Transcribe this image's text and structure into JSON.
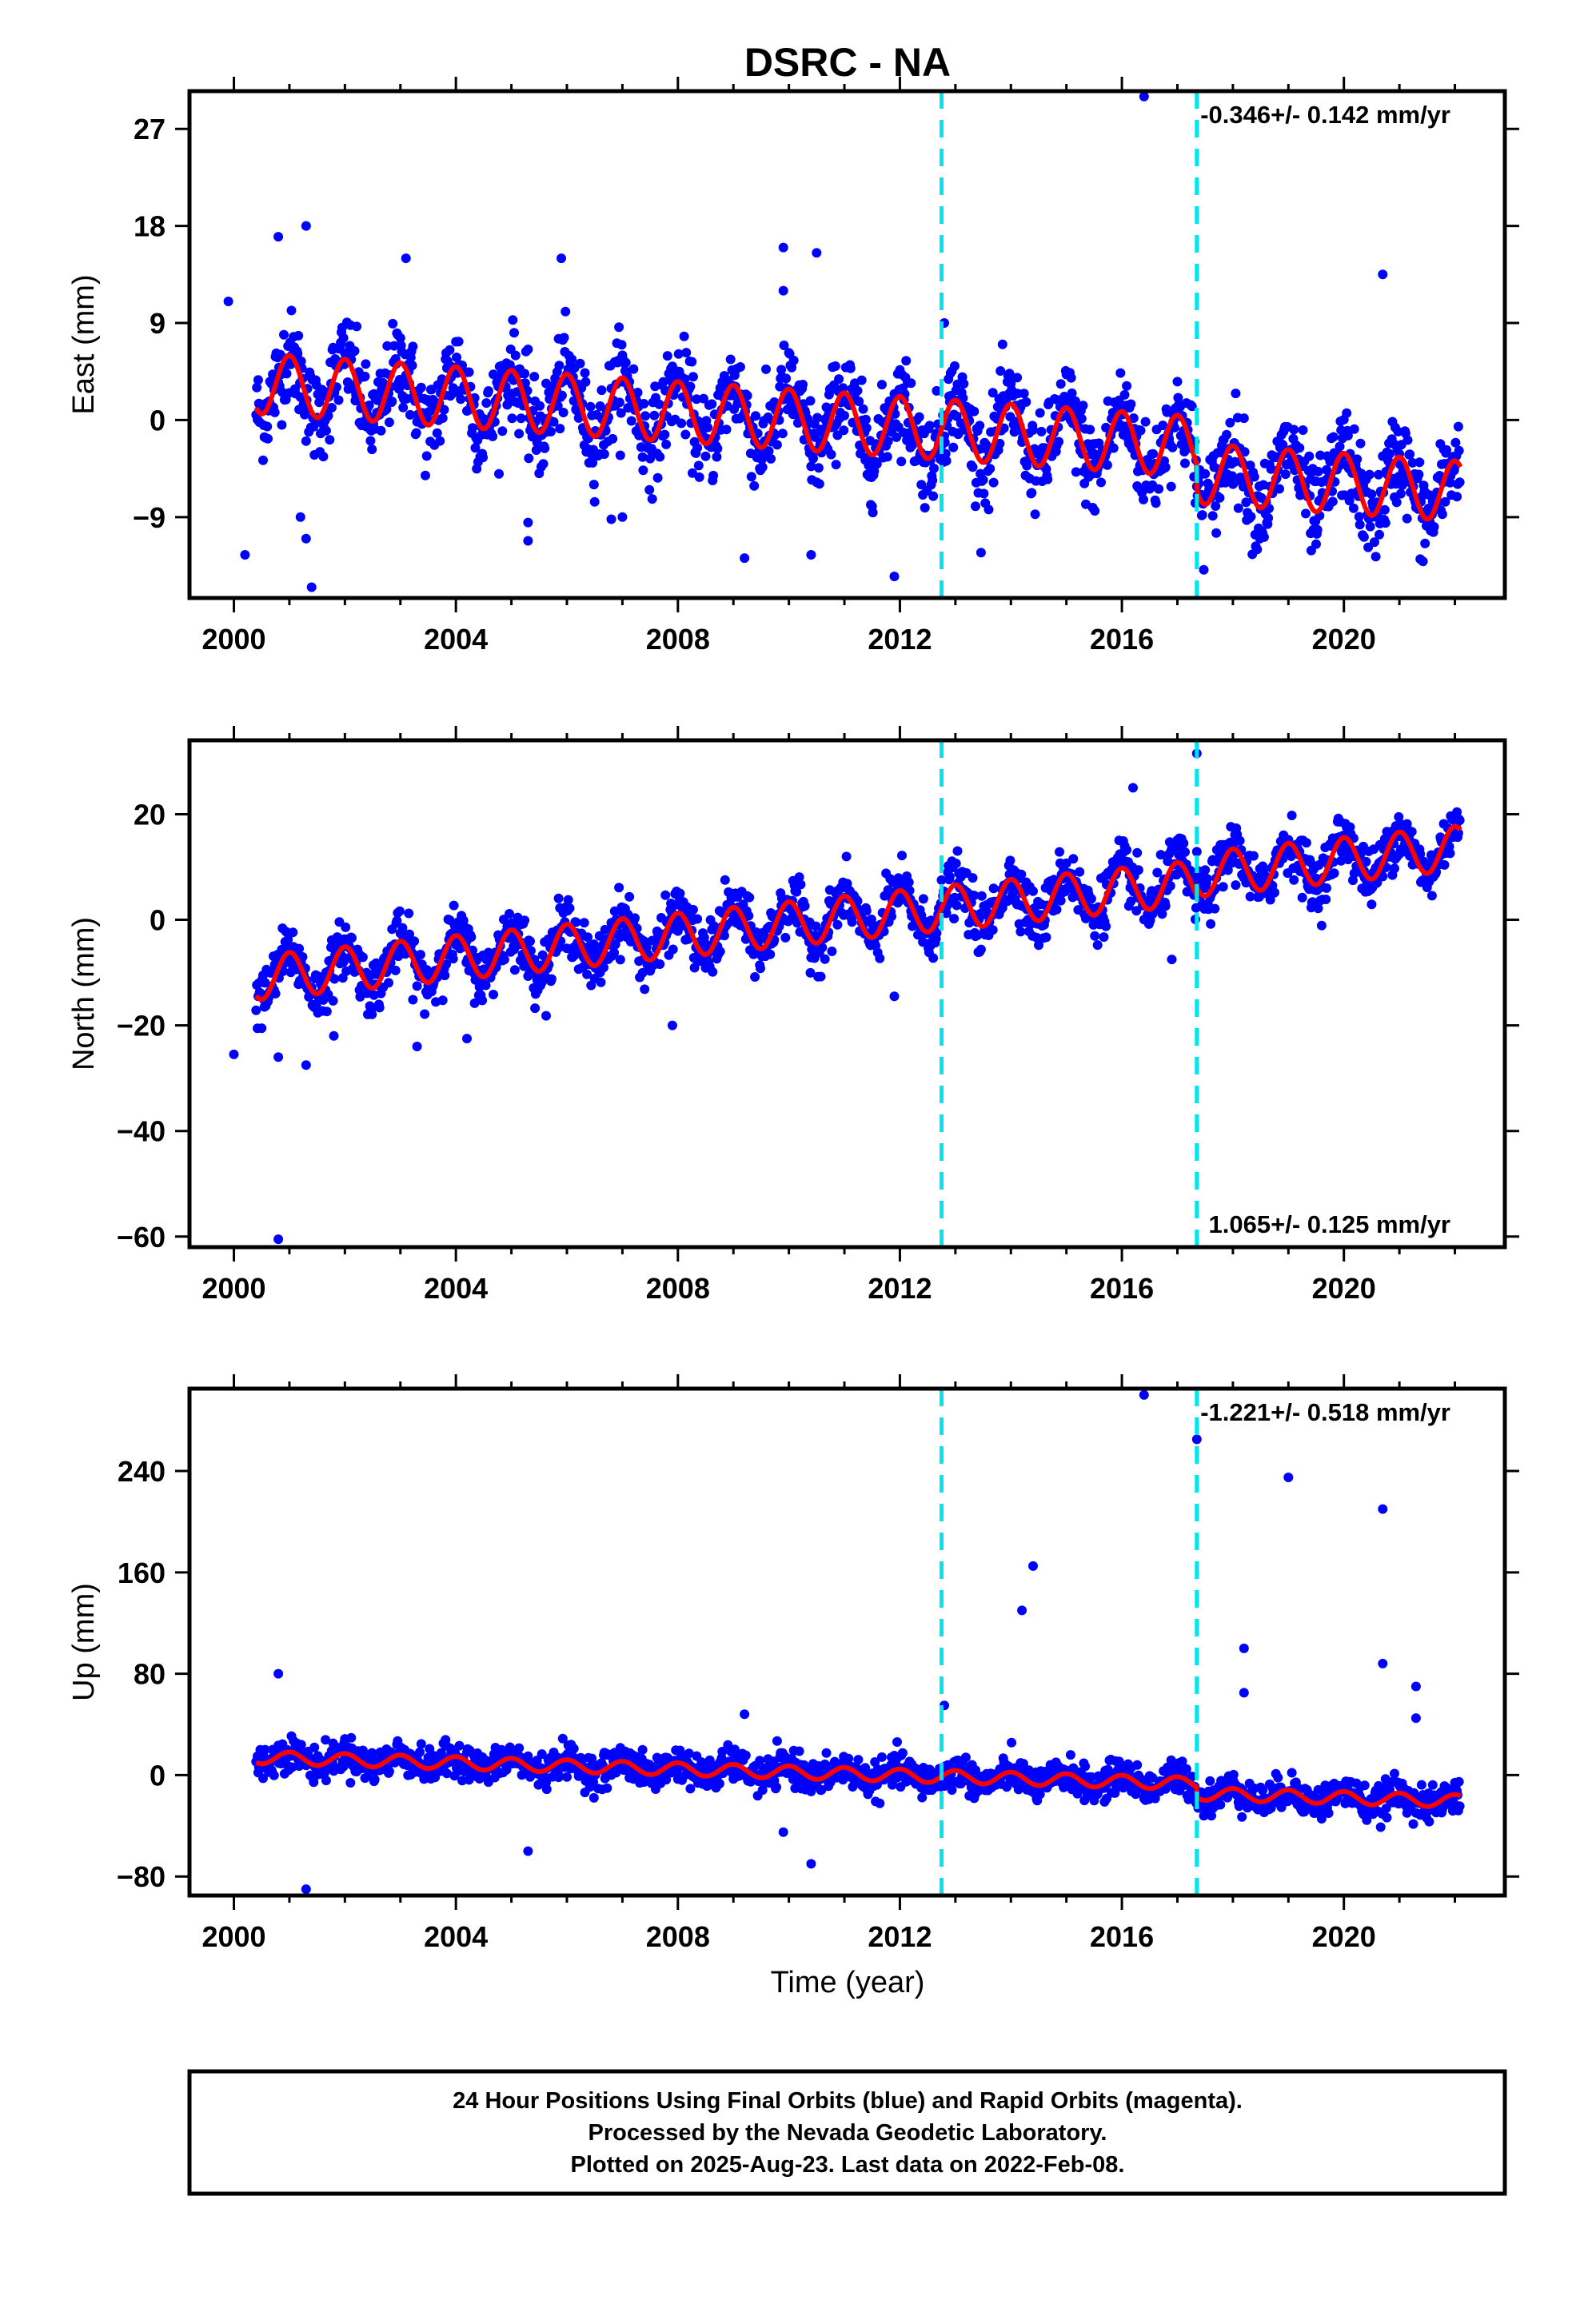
{
  "title": "DSRC - NA",
  "xlabel": "Time (year)",
  "footer": {
    "line1": "24 Hour Positions Using Final Orbits (blue) and Rapid Orbits (magenta).",
    "line2": "Processed by the Nevada Geodetic Laboratory.",
    "line3": "Plotted on 2025-Aug-23. Last data on 2022-Feb-08."
  },
  "colors": {
    "points": "#0000ff",
    "fit": "#ff0000",
    "event_lines": "#00e5ee",
    "frame": "#000000"
  },
  "chart_data": [
    {
      "type": "scatter",
      "component": "East",
      "ylabel": "East (mm)",
      "rate_label": "-0.346+/- 0.142 mm/yr",
      "rate_position": "top-right",
      "xlim": [
        1999.2,
        2022.9
      ],
      "ylim": [
        -16.5,
        30.5
      ],
      "xticks": [
        2000,
        2004,
        2008,
        2012,
        2016,
        2020
      ],
      "yticks": [
        -9,
        0,
        9,
        18,
        27
      ],
      "event_lines_x": [
        2012.75,
        2017.35
      ],
      "fit": {
        "description_units": "mm",
        "start": 2000.4,
        "end": 2022.1,
        "offset_at_start": 3.4,
        "rate_mm_per_yr": -0.346,
        "annual_amplitude": 2.8,
        "steps": [
          {
            "x": 2012.75,
            "dy": 0.0
          },
          {
            "x": 2017.35,
            "dy": -2.5
          }
        ]
      },
      "outliers": [
        [
          1999.9,
          11.0
        ],
        [
          2000.8,
          17.0
        ],
        [
          2001.3,
          18.0
        ],
        [
          2001.2,
          -9.0
        ],
        [
          2001.3,
          -11.0
        ],
        [
          2001.4,
          -15.5
        ],
        [
          2000.2,
          -12.5
        ],
        [
          2003.1,
          15.0
        ],
        [
          2005.3,
          -9.5
        ],
        [
          2005.3,
          -11.2
        ],
        [
          2005.9,
          15.0
        ],
        [
          2006.8,
          -9.2
        ],
        [
          2007.0,
          -9.0
        ],
        [
          2009.2,
          -12.8
        ],
        [
          2009.9,
          16.0
        ],
        [
          2009.9,
          12.0
        ],
        [
          2010.5,
          15.5
        ],
        [
          2010.4,
          -12.5
        ],
        [
          2011.9,
          -14.5
        ],
        [
          2012.8,
          9.0
        ],
        [
          2016.4,
          30.0
        ],
        [
          2020.7,
          13.5
        ],
        [
          2019.5,
          -11.5
        ],
        [
          2019.4,
          -10.5
        ]
      ]
    },
    {
      "type": "scatter",
      "component": "North",
      "ylabel": "North (mm)",
      "rate_label": "1.065+/- 0.125 mm/yr",
      "rate_position": "bottom-right",
      "xlim": [
        1999.2,
        2022.9
      ],
      "ylim": [
        -62.0,
        34.0
      ],
      "xticks": [
        2000,
        2004,
        2008,
        2012,
        2016,
        2020
      ],
      "yticks": [
        -60,
        -40,
        -20,
        0,
        20
      ],
      "event_lines_x": [
        2012.75,
        2017.35
      ],
      "fit": {
        "start": 2000.4,
        "end": 2022.1,
        "offset_at_start": -11.0,
        "rate_mm_per_yr": 1.065,
        "annual_amplitude": 4.2,
        "steps": [
          {
            "x": 2012.75,
            "dy": 0.0
          },
          {
            "x": 2017.35,
            "dy": 1.5
          }
        ]
      },
      "outliers": [
        [
          2000.8,
          -60.5
        ],
        [
          2000.0,
          -25.5
        ],
        [
          2000.8,
          -26.0
        ],
        [
          2001.3,
          -27.5
        ],
        [
          2001.8,
          -22.0
        ],
        [
          2003.3,
          -24.0
        ],
        [
          2004.2,
          -22.5
        ],
        [
          2007.9,
          -20.0
        ],
        [
          2011.9,
          -14.5
        ],
        [
          2016.2,
          25.0
        ],
        [
          2016.9,
          -7.5
        ],
        [
          2017.35,
          31.5
        ]
      ]
    },
    {
      "type": "scatter",
      "component": "Up",
      "ylabel": "Up (mm)",
      "rate_label": "-1.221+/- 0.518 mm/yr",
      "rate_position": "top-right",
      "xlim": [
        1999.2,
        2022.9
      ],
      "ylim": [
        -95,
        305
      ],
      "xticks": [
        2000,
        2004,
        2008,
        2012,
        2016,
        2020
      ],
      "yticks": [
        -80,
        0,
        80,
        160,
        240
      ],
      "event_lines_x": [
        2012.75,
        2017.35
      ],
      "fit": {
        "start": 2000.4,
        "end": 2022.1,
        "offset_at_start": 14.0,
        "rate_mm_per_yr": -1.221,
        "annual_amplitude": 5.0,
        "steps": [
          {
            "x": 2012.75,
            "dy": 0.0
          },
          {
            "x": 2017.35,
            "dy": -8.0
          }
        ]
      },
      "outliers": [
        [
          2000.8,
          80.0
        ],
        [
          2001.3,
          -90.0
        ],
        [
          2005.3,
          -60.0
        ],
        [
          2009.2,
          48.0
        ],
        [
          2009.9,
          -45.0
        ],
        [
          2010.4,
          -70.0
        ],
        [
          2012.8,
          55.0
        ],
        [
          2014.2,
          130.0
        ],
        [
          2014.4,
          165.0
        ],
        [
          2016.4,
          300.0
        ],
        [
          2017.35,
          265.0
        ],
        [
          2018.2,
          100.0
        ],
        [
          2018.2,
          65.0
        ],
        [
          2019.0,
          235.0
        ],
        [
          2020.7,
          210.0
        ],
        [
          2020.7,
          88.0
        ],
        [
          2021.3,
          70.0
        ],
        [
          2021.3,
          45.0
        ]
      ]
    }
  ]
}
